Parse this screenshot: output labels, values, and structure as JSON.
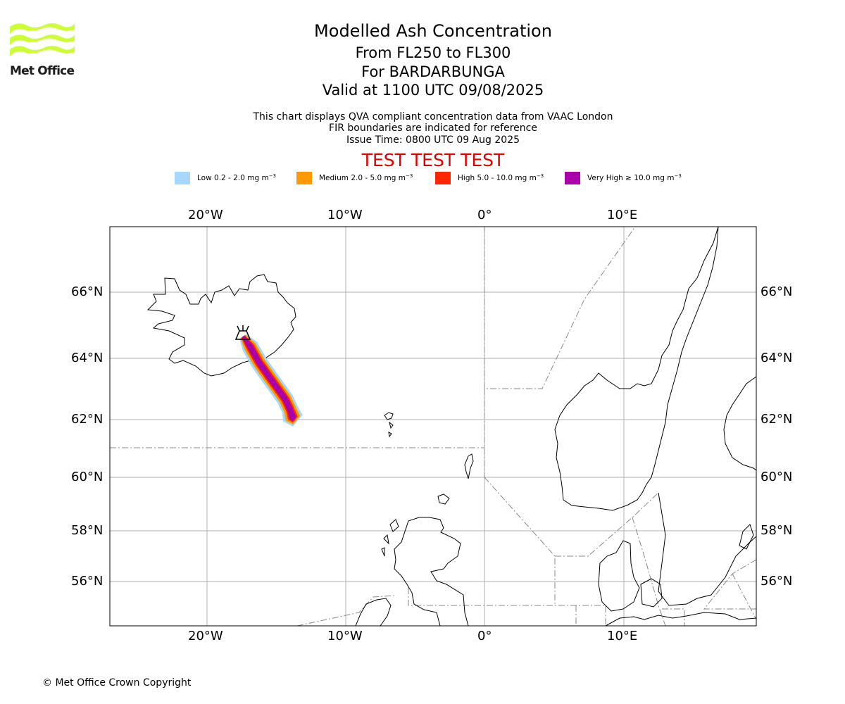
{
  "branding": {
    "name": "Met Office",
    "logo_color": "#ccff33"
  },
  "header": {
    "title": "Modelled Ash Concentration",
    "level_range": "From FL250 to FL300",
    "volcano": "For BARDARBUNGA",
    "valid_time": "Valid at 1100 UTC 09/08/2025",
    "description": "This chart displays QVA compliant concentration data from VAAC London",
    "fir_note": "FIR boundaries are indicated for reference",
    "issue_time": "Issue Time: 0800 UTC 09 Aug 2025",
    "test_banner": "TEST TEST TEST",
    "test_color": "#e00000"
  },
  "legend": [
    {
      "label": "Low 0.2 - 2.0 mg m",
      "unit_exp": "−3",
      "color": "#a6d8ff"
    },
    {
      "label": "Medium 2.0 - 5.0 mg m",
      "unit_exp": "−3",
      "color": "#ff9900"
    },
    {
      "label": "High 5.0 - 10.0 mg m",
      "unit_exp": "−3",
      "color": "#ff2600"
    },
    {
      "label": "Very High  ≥  10.0 mg m",
      "unit_exp": "−3",
      "color": "#aa00aa"
    }
  ],
  "map": {
    "lon_ticks": [
      "20°W",
      "10°W",
      "0°",
      "10°E"
    ],
    "lat_ticks": [
      "66°N",
      "64°N",
      "62°N",
      "60°N",
      "58°N",
      "56°N"
    ],
    "gridlines": true,
    "volcano_marker": "volcano-icon",
    "coastline_color": "#000000",
    "grid_color": "#b0b0b0",
    "fir_color": "#888888"
  },
  "footer": {
    "copyright": "© Met Office Crown Copyright"
  }
}
